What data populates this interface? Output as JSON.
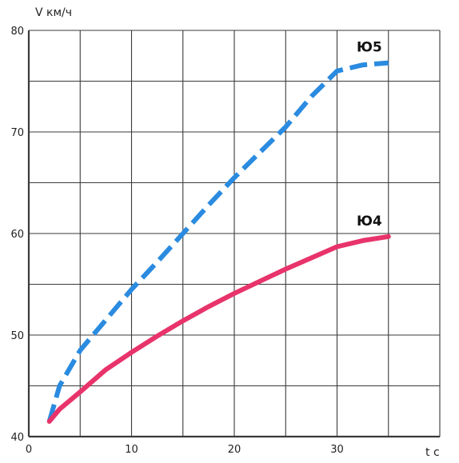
{
  "chart_data": {
    "type": "line",
    "xlabel": "t c",
    "ylabel": "V км/ч",
    "xlim": [
      0,
      40
    ],
    "ylim": [
      40,
      80
    ],
    "x_ticks": [
      0,
      10,
      20,
      30
    ],
    "y_ticks": [
      40,
      50,
      60,
      70,
      80
    ],
    "grid": true,
    "series": [
      {
        "name": "Ю5",
        "color": "#2a8be0",
        "dash": true,
        "x": [
          2,
          3,
          5,
          7.5,
          10,
          12.5,
          15,
          17.5,
          20,
          22.5,
          25,
          27.5,
          30,
          32.5,
          35
        ],
        "y": [
          41.5,
          45,
          48.5,
          51.5,
          54.5,
          57.2,
          60,
          62.8,
          65.5,
          68,
          70.5,
          73.5,
          76,
          76.6,
          76.8
        ]
      },
      {
        "name": "Ю4",
        "color": "#e8336b",
        "dash": false,
        "x": [
          2,
          3,
          5,
          7.5,
          10,
          12.5,
          15,
          17.5,
          20,
          22.5,
          25,
          27.5,
          30,
          32.5,
          35
        ],
        "y": [
          41.5,
          42.7,
          44.4,
          46.6,
          48.3,
          49.9,
          51.4,
          52.8,
          54.1,
          55.3,
          56.5,
          57.6,
          58.7,
          59.3,
          59.7
        ]
      }
    ]
  }
}
